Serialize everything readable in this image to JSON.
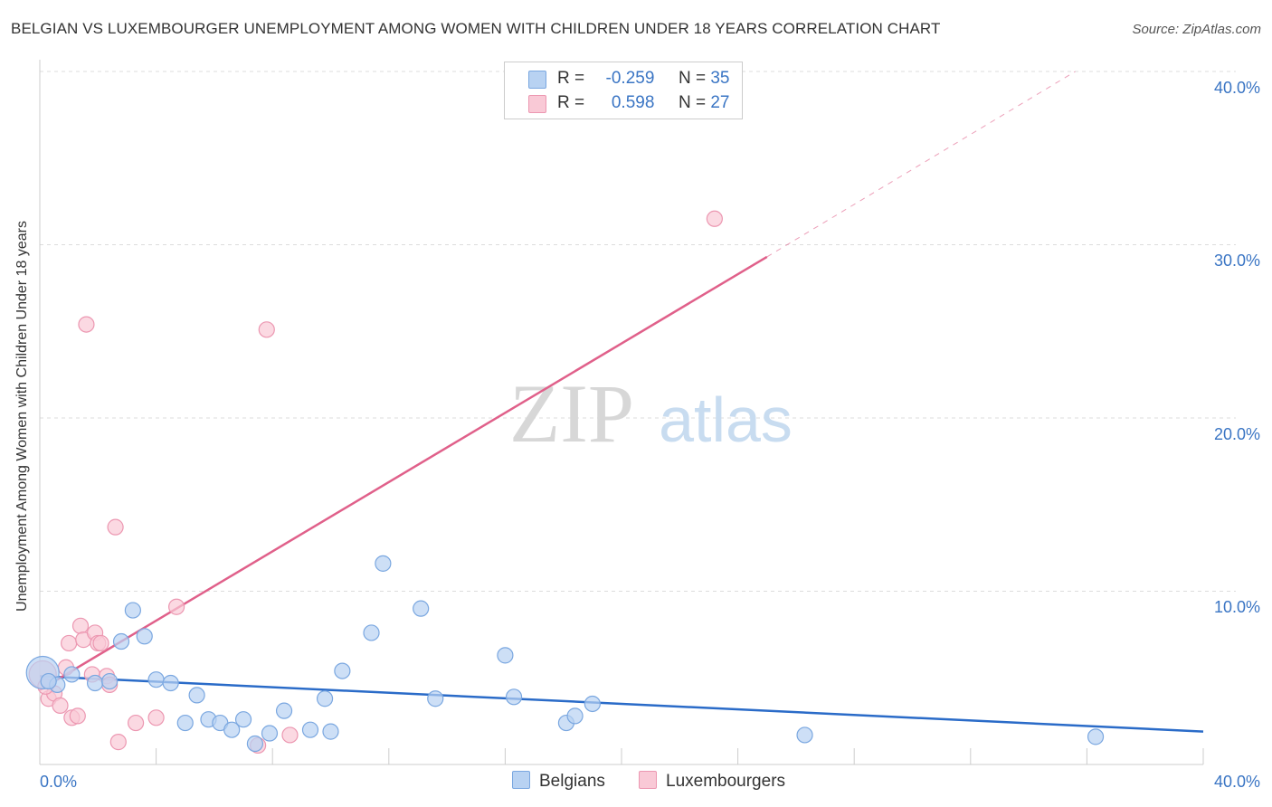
{
  "title": "BELGIAN VS LUXEMBOURGER UNEMPLOYMENT AMONG WOMEN WITH CHILDREN UNDER 18 YEARS CORRELATION CHART",
  "source": "Source: ZipAtlas.com",
  "watermark": {
    "zip": "ZIP",
    "atlas": "atlas"
  },
  "colors": {
    "belgian_fill": "#b8d2f2",
    "belgian_stroke": "#7aa7e0",
    "belgian_line": "#2a6bc8",
    "lux_fill": "#f9c9d6",
    "lux_stroke": "#ec97b1",
    "lux_line": "#e0608a",
    "axis_text": "#3a75c4",
    "grid": "#dddddd"
  },
  "legend": {
    "r_label": "R =",
    "n_label": "N =",
    "belgians": {
      "r": "-0.259",
      "n": "35"
    },
    "luxembourgers": {
      "r": "0.598",
      "n": "27"
    }
  },
  "bottom_legend": {
    "belgians": "Belgians",
    "luxembourgers": "Luxembourgers"
  },
  "chart_data": {
    "type": "scatter",
    "title": "BELGIAN VS LUXEMBOURGER UNEMPLOYMENT AMONG WOMEN WITH CHILDREN UNDER 18 YEARS CORRELATION CHART",
    "xlabel": "",
    "ylabel": "Unemployment Among Women with Children Under 18 years",
    "xlim": [
      0,
      40
    ],
    "ylim": [
      0,
      40
    ],
    "x_tick_labels": [
      "0.0%",
      "40.0%"
    ],
    "y_tick_labels": [
      "10.0%",
      "20.0%",
      "30.0%",
      "40.0%"
    ],
    "y_ticks": [
      10,
      20,
      30,
      40
    ],
    "grid": true,
    "series": [
      {
        "name": "Belgians",
        "r": -0.259,
        "n": 35,
        "points": [
          [
            0.1,
            5.3,
            3
          ],
          [
            0.6,
            4.6,
            1
          ],
          [
            1.1,
            5.2,
            1
          ],
          [
            1.9,
            4.7,
            1
          ],
          [
            2.4,
            4.8,
            1
          ],
          [
            2.8,
            7.1,
            1
          ],
          [
            3.2,
            8.9,
            1
          ],
          [
            3.6,
            7.4,
            1
          ],
          [
            4.0,
            4.9,
            1
          ],
          [
            4.5,
            4.7,
            1
          ],
          [
            5.0,
            2.4,
            1
          ],
          [
            5.4,
            4.0,
            1
          ],
          [
            5.8,
            2.6,
            1
          ],
          [
            6.2,
            2.4,
            1
          ],
          [
            6.6,
            2.0,
            1
          ],
          [
            7.0,
            2.6,
            1
          ],
          [
            7.4,
            1.2,
            1
          ],
          [
            7.9,
            1.8,
            1
          ],
          [
            8.4,
            3.1,
            1
          ],
          [
            9.3,
            2.0,
            1
          ],
          [
            9.8,
            3.8,
            1
          ],
          [
            10.0,
            1.9,
            1
          ],
          [
            10.4,
            5.4,
            1
          ],
          [
            11.4,
            7.6,
            1
          ],
          [
            11.8,
            11.6,
            1
          ],
          [
            13.1,
            9.0,
            1
          ],
          [
            13.6,
            3.8,
            1
          ],
          [
            16.0,
            6.3,
            1
          ],
          [
            16.3,
            3.9,
            1
          ],
          [
            18.1,
            2.4,
            1
          ],
          [
            18.4,
            2.8,
            1
          ],
          [
            19.0,
            3.5,
            1
          ],
          [
            26.3,
            1.7,
            1
          ],
          [
            36.3,
            1.6,
            1
          ],
          [
            0.3,
            4.8,
            1
          ]
        ],
        "trend": {
          "x0": 0,
          "y0": 5.1,
          "x1": 40,
          "y1": 1.9
        }
      },
      {
        "name": "Luxembourgers",
        "r": 0.598,
        "n": 27,
        "points": [
          [
            0.1,
            5.2,
            2
          ],
          [
            0.3,
            3.8,
            1
          ],
          [
            0.5,
            4.1,
            1
          ],
          [
            0.7,
            3.4,
            1
          ],
          [
            0.9,
            5.6,
            1
          ],
          [
            1.0,
            7.0,
            1
          ],
          [
            1.1,
            2.7,
            1
          ],
          [
            1.3,
            2.8,
            1
          ],
          [
            1.4,
            8.0,
            1
          ],
          [
            1.5,
            7.2,
            1
          ],
          [
            1.6,
            25.4,
            1
          ],
          [
            1.8,
            5.2,
            1
          ],
          [
            1.9,
            7.6,
            1
          ],
          [
            2.0,
            7.0,
            1
          ],
          [
            2.1,
            7.0,
            1
          ],
          [
            2.3,
            5.1,
            1
          ],
          [
            2.4,
            4.6,
            1
          ],
          [
            2.6,
            13.7,
            1
          ],
          [
            2.7,
            1.3,
            1
          ],
          [
            3.3,
            2.4,
            1
          ],
          [
            4.0,
            2.7,
            1
          ],
          [
            4.7,
            9.1,
            1
          ],
          [
            7.5,
            1.1,
            1
          ],
          [
            7.8,
            25.1,
            1
          ],
          [
            8.6,
            1.7,
            1
          ],
          [
            23.2,
            31.5,
            1
          ],
          [
            0.2,
            4.5,
            1
          ]
        ],
        "trend": {
          "x0": 0,
          "y0": 4.3,
          "x1": 25,
          "y1": 29.3,
          "dashed_to_x": 35.6,
          "dashed_to_y": 40.0
        }
      }
    ]
  }
}
